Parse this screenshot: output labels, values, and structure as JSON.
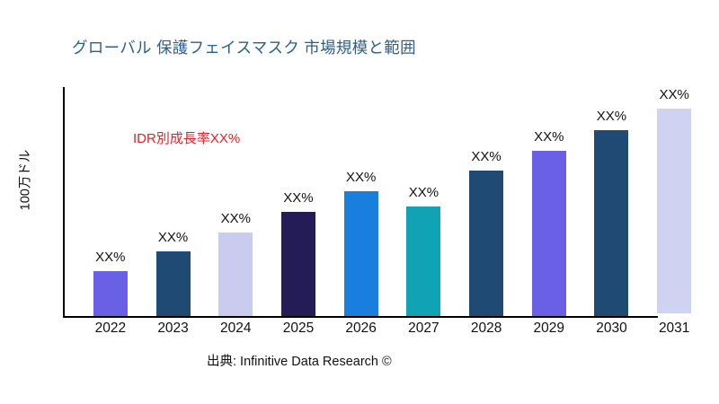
{
  "title": {
    "text": "グローバル 保護フェイスマスク 市場規模と範囲",
    "color": "#2D5F8C"
  },
  "chart_data": {
    "type": "bar",
    "title": "グローバル 保護フェイスマスク 市場規模と範囲",
    "ylabel": "100万ドル",
    "xlabel": "",
    "categories": [
      "2022",
      "2023",
      "2024",
      "2025",
      "2026",
      "2027",
      "2028",
      "2029",
      "2030",
      "2031"
    ],
    "values": [
      50,
      72,
      93,
      116,
      139,
      122,
      162,
      184,
      207,
      230
    ],
    "values_note": "relative bar heights; numeric axis not labeled in chart",
    "bar_labels": [
      "XX%",
      "XX%",
      "XX%",
      "XX%",
      "XX%",
      "XX%",
      "XX%",
      "XX%",
      "XX%",
      "XX%"
    ],
    "bar_colors": [
      "#6A60E6",
      "#1F4A73",
      "#C9CCEE",
      "#231C57",
      "#187FDE",
      "#10A3B5",
      "#1F4A73",
      "#6A60E6",
      "#1F4A73",
      "#CFD2F0"
    ],
    "ylim": [
      0,
      255
    ],
    "grid": false,
    "legend": false,
    "annotation": {
      "text": "IDR別成長率XX%",
      "color": "#E82026"
    }
  },
  "footer": {
    "source": "出典: Infinitive Data Research ©"
  }
}
